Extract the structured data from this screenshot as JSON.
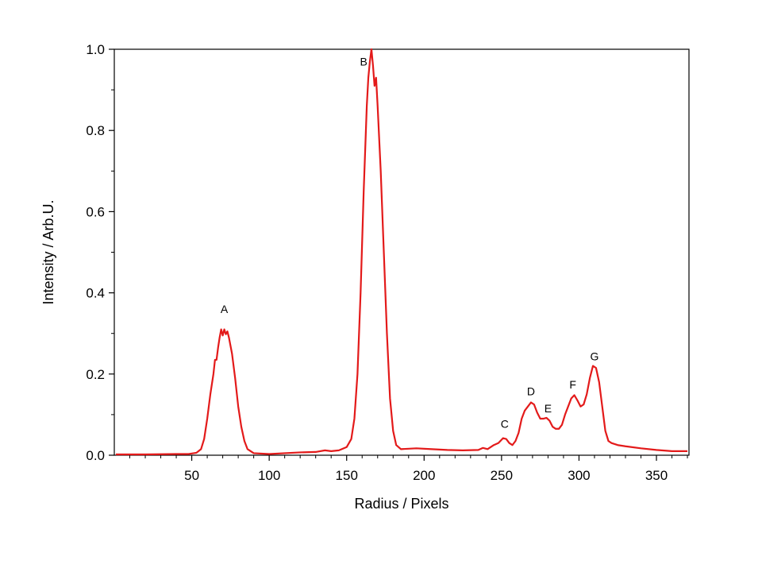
{
  "chart_data": {
    "type": "line",
    "title": "",
    "xlabel": "Radius / Pixels",
    "ylabel": "Intensity / Arb.U.",
    "xlim": [
      0,
      371
    ],
    "ylim": [
      0,
      1.0
    ],
    "grid": false,
    "legend": "none",
    "x_ticks": [
      "50",
      "100",
      "150",
      "200",
      "250",
      "300",
      "350"
    ],
    "y_ticks": [
      "0.0",
      "0.2",
      "0.4",
      "0.6",
      "0.8",
      "1.0"
    ],
    "series": [
      {
        "color": "#e31a1a",
        "points": [
          [
            1,
            0.002
          ],
          [
            20,
            0.002
          ],
          [
            40,
            0.003
          ],
          [
            48,
            0.003
          ],
          [
            53,
            0.006
          ],
          [
            56,
            0.015
          ],
          [
            58,
            0.04
          ],
          [
            60,
            0.09
          ],
          [
            62,
            0.15
          ],
          [
            64,
            0.2
          ],
          [
            65,
            0.235
          ],
          [
            66,
            0.235
          ],
          [
            67,
            0.265
          ],
          [
            68,
            0.29
          ],
          [
            69,
            0.31
          ],
          [
            70,
            0.295
          ],
          [
            71,
            0.31
          ],
          [
            72,
            0.298
          ],
          [
            73,
            0.305
          ],
          [
            74,
            0.29
          ],
          [
            76,
            0.25
          ],
          [
            78,
            0.19
          ],
          [
            80,
            0.12
          ],
          [
            82,
            0.07
          ],
          [
            84,
            0.035
          ],
          [
            86,
            0.015
          ],
          [
            90,
            0.005
          ],
          [
            100,
            0.003
          ],
          [
            110,
            0.005
          ],
          [
            120,
            0.007
          ],
          [
            130,
            0.008
          ],
          [
            136,
            0.012
          ],
          [
            140,
            0.01
          ],
          [
            145,
            0.012
          ],
          [
            150,
            0.02
          ],
          [
            153,
            0.04
          ],
          [
            155,
            0.09
          ],
          [
            157,
            0.2
          ],
          [
            159,
            0.4
          ],
          [
            161,
            0.65
          ],
          [
            163,
            0.86
          ],
          [
            164,
            0.93
          ],
          [
            165,
            0.97
          ],
          [
            166,
            1.0
          ],
          [
            167,
            0.96
          ],
          [
            168,
            0.91
          ],
          [
            169,
            0.93
          ],
          [
            170,
            0.86
          ],
          [
            172,
            0.7
          ],
          [
            174,
            0.5
          ],
          [
            176,
            0.3
          ],
          [
            178,
            0.14
          ],
          [
            180,
            0.06
          ],
          [
            182,
            0.025
          ],
          [
            185,
            0.015
          ],
          [
            195,
            0.017
          ],
          [
            205,
            0.015
          ],
          [
            215,
            0.013
          ],
          [
            225,
            0.012
          ],
          [
            235,
            0.013
          ],
          [
            238,
            0.018
          ],
          [
            241,
            0.015
          ],
          [
            245,
            0.025
          ],
          [
            248,
            0.03
          ],
          [
            251,
            0.042
          ],
          [
            253,
            0.04
          ],
          [
            255,
            0.03
          ],
          [
            257,
            0.025
          ],
          [
            259,
            0.035
          ],
          [
            261,
            0.055
          ],
          [
            263,
            0.09
          ],
          [
            265,
            0.11
          ],
          [
            267,
            0.12
          ],
          [
            269,
            0.13
          ],
          [
            271,
            0.125
          ],
          [
            273,
            0.105
          ],
          [
            275,
            0.09
          ],
          [
            277,
            0.09
          ],
          [
            279,
            0.092
          ],
          [
            281,
            0.085
          ],
          [
            283,
            0.07
          ],
          [
            285,
            0.065
          ],
          [
            287,
            0.065
          ],
          [
            289,
            0.075
          ],
          [
            291,
            0.1
          ],
          [
            293,
            0.12
          ],
          [
            295,
            0.14
          ],
          [
            297,
            0.148
          ],
          [
            299,
            0.135
          ],
          [
            301,
            0.12
          ],
          [
            303,
            0.125
          ],
          [
            305,
            0.15
          ],
          [
            307,
            0.19
          ],
          [
            309,
            0.22
          ],
          [
            311,
            0.215
          ],
          [
            313,
            0.18
          ],
          [
            315,
            0.12
          ],
          [
            317,
            0.06
          ],
          [
            319,
            0.035
          ],
          [
            321,
            0.03
          ],
          [
            325,
            0.025
          ],
          [
            330,
            0.022
          ],
          [
            340,
            0.017
          ],
          [
            350,
            0.013
          ],
          [
            360,
            0.01
          ],
          [
            370,
            0.01
          ]
        ]
      }
    ],
    "annotations": [
      {
        "text": "A",
        "x": 71,
        "y": 0.35
      },
      {
        "text": "B",
        "x": 161,
        "y": 0.96
      },
      {
        "text": "C",
        "x": 252,
        "y": 0.068
      },
      {
        "text": "D",
        "x": 269,
        "y": 0.148
      },
      {
        "text": "E",
        "x": 280,
        "y": 0.106
      },
      {
        "text": "F",
        "x": 296,
        "y": 0.164
      },
      {
        "text": "G",
        "x": 310,
        "y": 0.234
      }
    ]
  }
}
